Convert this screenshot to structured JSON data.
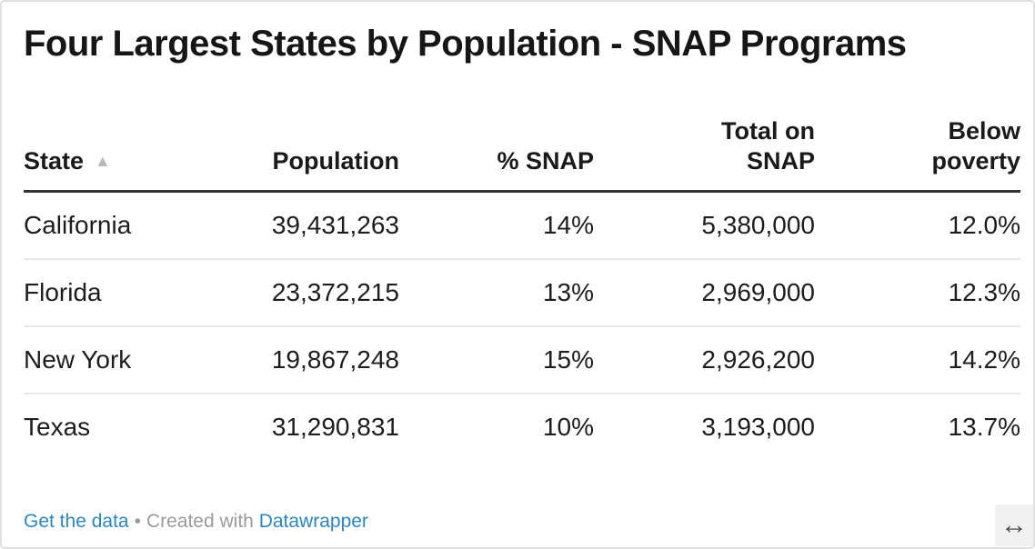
{
  "title": "Four Largest States by Population - SNAP Programs",
  "chart_data": {
    "type": "table",
    "title": "Four Largest States by Population - SNAP Programs",
    "columns": [
      "State",
      "Population",
      "% SNAP",
      "Total on SNAP",
      "Below poverty"
    ],
    "rows": [
      {
        "state": "California",
        "population": 39431263,
        "pct_snap": "14%",
        "total_on_snap": 5380000,
        "below_poverty": "12.0%"
      },
      {
        "state": "Florida",
        "population": 23372215,
        "pct_snap": "13%",
        "total_on_snap": 2969000,
        "below_poverty": "12.3%"
      },
      {
        "state": "New York",
        "population": 19867248,
        "pct_snap": "15%",
        "total_on_snap": 2926200,
        "below_poverty": "14.2%"
      },
      {
        "state": "Texas",
        "population": 31290831,
        "pct_snap": "10%",
        "total_on_snap": 3193000,
        "below_poverty": "13.7%"
      }
    ],
    "sort": {
      "column": "State",
      "direction": "ascending"
    }
  },
  "table": {
    "headers": {
      "state": "State",
      "population": "Population",
      "pct_snap": "% SNAP",
      "total_on_snap": "Total on\nSNAP",
      "below_poverty": "Below\npoverty"
    },
    "rows": [
      [
        "California",
        "39,431,263",
        "14%",
        "5,380,000",
        "12.0%"
      ],
      [
        "Florida",
        "23,372,215",
        "13%",
        "2,969,000",
        "12.3%"
      ],
      [
        "New York",
        "19,867,248",
        "15%",
        "2,926,200",
        "14.2%"
      ],
      [
        "Texas",
        "31,290,831",
        "10%",
        "3,193,000",
        "13.7%"
      ]
    ]
  },
  "icons": {
    "sort_ascending": "▲",
    "resize_horizontal": "↔"
  },
  "footer": {
    "get_data_label": "Get the data",
    "separator": "•",
    "created_with_label": "Created with",
    "datawrapper_label": "Datawrapper"
  },
  "colors": {
    "link_blue": "#2b87c4",
    "footer_gray": "#9b9b9b",
    "header_rule": "#333333",
    "row_separator": "#e8e8e8",
    "sort_icon_gray": "#b9b9b9",
    "border": "#e0e0e0",
    "text": "#1d1d1d"
  }
}
